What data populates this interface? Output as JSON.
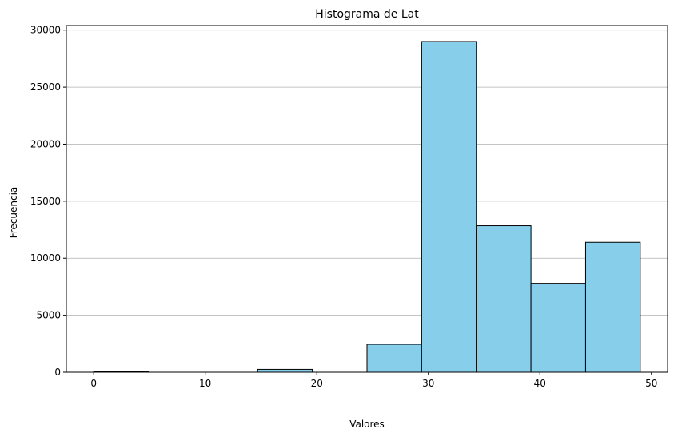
{
  "chart_data": {
    "type": "bar",
    "title": "Histograma de Lat",
    "xlabel": "Valores",
    "ylabel": "Frecuencia",
    "bar_color": "#87CEEB",
    "edge_color": "#000000",
    "grid": "y-axis only",
    "xlim": [
      -2.45,
      51.45
    ],
    "ylim": [
      0,
      30400
    ],
    "xticks": [
      0,
      10,
      20,
      30,
      40,
      50
    ],
    "xtick_labels": [
      "0",
      "10",
      "20",
      "30",
      "40",
      "50"
    ],
    "yticks": [
      0,
      5000,
      10000,
      15000,
      20000,
      25000,
      30000
    ],
    "ytick_labels": [
      "0",
      "5000",
      "10000",
      "15000",
      "20000",
      "25000",
      "30000"
    ],
    "bins": [
      {
        "x0": 0.0,
        "x1": 4.9,
        "value": 50
      },
      {
        "x0": 4.9,
        "x1": 9.8,
        "value": 0
      },
      {
        "x0": 9.8,
        "x1": 14.7,
        "value": 0
      },
      {
        "x0": 14.7,
        "x1": 19.6,
        "value": 250
      },
      {
        "x0": 19.6,
        "x1": 24.5,
        "value": 0
      },
      {
        "x0": 24.5,
        "x1": 29.4,
        "value": 2450
      },
      {
        "x0": 29.4,
        "x1": 34.3,
        "value": 29000
      },
      {
        "x0": 34.3,
        "x1": 39.2,
        "value": 12850
      },
      {
        "x0": 39.2,
        "x1": 44.1,
        "value": 7800
      },
      {
        "x0": 44.1,
        "x1": 49.0,
        "value": 11400
      }
    ]
  }
}
